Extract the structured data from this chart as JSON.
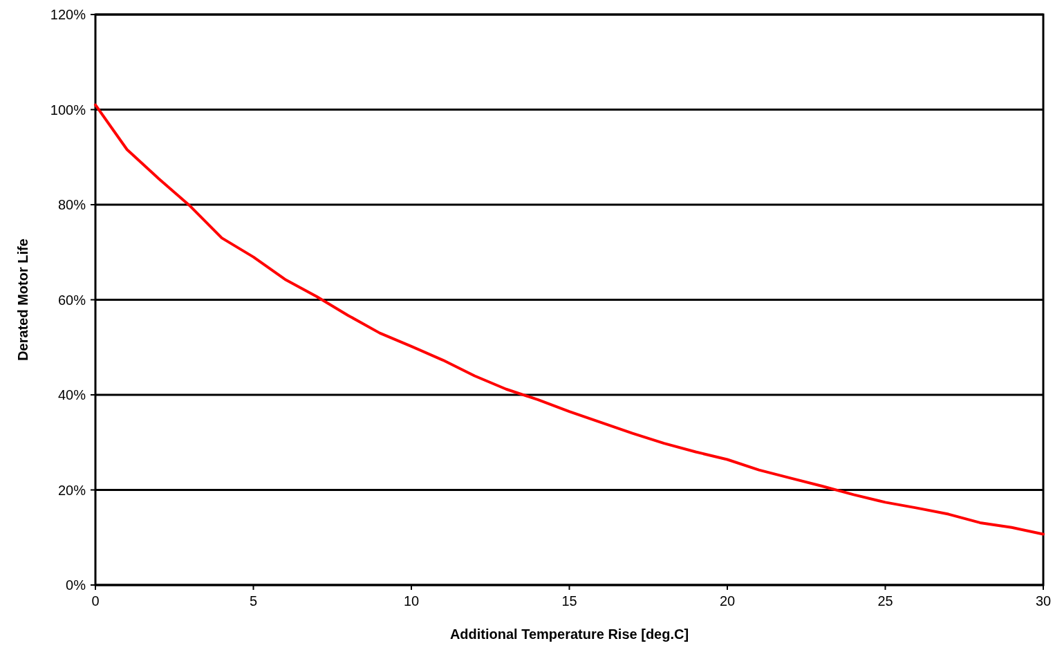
{
  "chart_data": {
    "type": "line",
    "xlabel": "Additional Temperature Rise [deg.C]",
    "ylabel": "Derated Motor Life",
    "x": [
      0,
      1,
      2,
      3,
      4,
      5,
      6,
      7,
      8,
      9,
      10,
      11,
      12,
      13,
      14,
      15,
      16,
      17,
      18,
      19,
      20,
      21,
      22,
      23,
      24,
      25,
      26,
      27,
      28,
      29,
      30
    ],
    "series": [
      {
        "color": "#ff0000",
        "values": [
          101,
          91.6,
          85.5,
          79.7,
          73,
          69,
          64.3,
          60.7,
          56.7,
          53,
          50.2,
          47.3,
          44,
          41.2,
          39,
          36.5,
          34.2,
          31.9,
          29.8,
          28,
          26.4,
          24.2,
          22.5,
          20.8,
          19,
          17.4,
          16.2,
          14.9,
          13.1,
          12.1,
          10.7
        ]
      }
    ],
    "xlim": [
      0,
      30
    ],
    "xticks": [
      0,
      5,
      10,
      15,
      20,
      25,
      30
    ],
    "ylim": [
      0,
      120
    ],
    "yticks": [
      {
        "value": 0,
        "label": "0%"
      },
      {
        "value": 20,
        "label": "20%"
      },
      {
        "value": 40,
        "label": "40%"
      },
      {
        "value": 60,
        "label": "60%"
      },
      {
        "value": 80,
        "label": "80%"
      },
      {
        "value": 100,
        "label": "100%"
      },
      {
        "value": 120,
        "label": "120%"
      }
    ],
    "grid": "y",
    "marker": "none",
    "line_style": "solid"
  }
}
